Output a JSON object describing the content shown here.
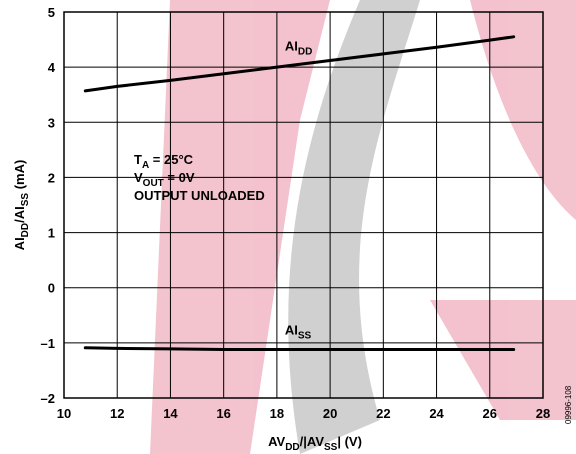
{
  "chart_data": {
    "type": "line",
    "xlabel": {
      "base": "AV",
      "sub1": "DD",
      "mid": "/|AV",
      "sub2": "SS",
      "tail": "| (V)"
    },
    "ylabel": {
      "base": "AI",
      "sub1": "DD",
      "mid": "/AI",
      "sub2": "SS",
      "tail": " (mA)"
    },
    "xlim": [
      10,
      28
    ],
    "ylim": [
      -2,
      5
    ],
    "xticks": [
      10,
      12,
      14,
      16,
      18,
      20,
      22,
      24,
      26,
      28
    ],
    "yticks": [
      -2,
      -1,
      0,
      1,
      2,
      3,
      4,
      5
    ],
    "ytick_labels": [
      "–2",
      "–1",
      "0",
      "1",
      "2",
      "3",
      "4",
      "5"
    ],
    "grid": true,
    "series": [
      {
        "name": "AIDD",
        "label_base": "AI",
        "label_sub": "DD",
        "color": "#000000",
        "x": [
          10.8,
          12,
          14,
          16,
          18,
          20,
          22,
          24,
          26,
          26.9
        ],
        "y": [
          3.57,
          3.65,
          3.76,
          3.88,
          4.0,
          4.12,
          4.24,
          4.36,
          4.49,
          4.55
        ]
      },
      {
        "name": "AISS",
        "label_base": "AI",
        "label_sub": "SS",
        "color": "#000000",
        "x": [
          10.8,
          12,
          14,
          16,
          18,
          20,
          22,
          24,
          26,
          26.9
        ],
        "y": [
          -1.09,
          -1.1,
          -1.11,
          -1.12,
          -1.12,
          -1.12,
          -1.12,
          -1.12,
          -1.12,
          -1.12
        ]
      }
    ],
    "annotation": {
      "line1": {
        "base": "T",
        "sub": "A",
        "tail": " = 25°C"
      },
      "line2": {
        "base": "V",
        "sub": "OUT",
        "tail": " = 0V"
      },
      "line3": "OUTPUT UNLOADED"
    },
    "figure_id": "09996-108"
  }
}
